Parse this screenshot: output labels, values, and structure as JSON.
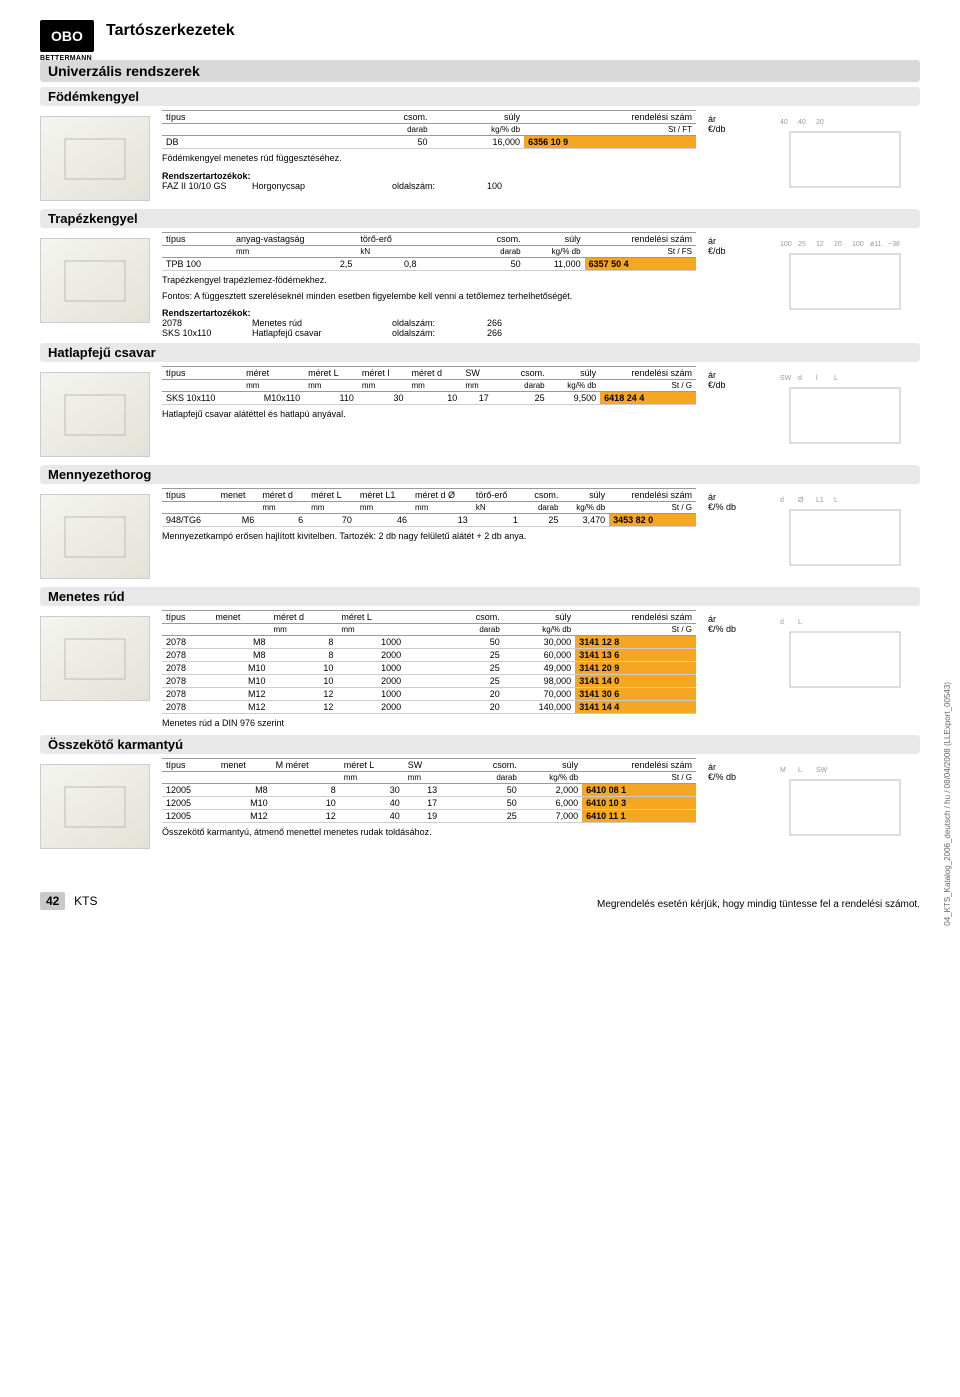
{
  "logo": {
    "text": "OBO",
    "sub": "BETTERMANN"
  },
  "pageTitle": "Tartószerkezetek",
  "mainBar": "Univerzális rendszerek",
  "footer": {
    "pageNum": "42",
    "code": "KTS",
    "note": "Megrendelés esetén kérjük, hogy mindig tüntesse fel a rendelési számot."
  },
  "sideText": "04_KTS_Katalog_2006_deutsch / hu / 08/04/2008 (LLExport_00543)",
  "orderHighlight": "#f5a623",
  "price": {
    "ar": "ár",
    "unitDb": "€/db",
    "unitPctDb": "€/% db"
  },
  "sections": [
    {
      "title": "Födémkengyel",
      "priceUnit": "€/db",
      "headerRow1": [
        "típus",
        "",
        "",
        "",
        "",
        "",
        "",
        "csom.",
        "súly",
        "rendelési szám"
      ],
      "headerRow2": [
        "",
        "",
        "",
        "",
        "",
        "",
        "",
        "darab",
        "kg/% db",
        "St   /   FT"
      ],
      "rows": [
        [
          "DB",
          "",
          "",
          "",
          "",
          "",
          "",
          "50",
          "16,000",
          "6356 10 9"
        ]
      ],
      "notes": [
        "Födémkengyel menetes rúd függesztéséhez."
      ],
      "accessories": {
        "title": "Rendszertartozékok:",
        "items": [
          [
            "FAZ II 10/10 GS",
            "Horgonycsap",
            "oldalszám:",
            "100"
          ]
        ]
      },
      "diagramDims": [
        "40",
        "40",
        "20"
      ]
    },
    {
      "title": "Trapézkengyel",
      "priceUnit": "€/db",
      "headerRow1": [
        "típus",
        "anyag-vastagság",
        "törő-erő",
        "",
        "",
        "",
        "",
        "csom.",
        "súly",
        "rendelési szám"
      ],
      "headerRow2": [
        "",
        "mm",
        "kN",
        "",
        "",
        "",
        "",
        "darab",
        "kg/% db",
        "St   /   FS"
      ],
      "rows": [
        [
          "TPB 100",
          "2,5",
          "0,8",
          "",
          "",
          "",
          "",
          "50",
          "11,000",
          "6357 50 4"
        ]
      ],
      "notes": [
        "Trapézkengyel trapézlemez-födémekhez.",
        "Fontos: A függesztett szereléseknél minden esetben figyelembe kell venni a tetőlemez terhelhetőségét."
      ],
      "accessories": {
        "title": "Rendszertartozékok:",
        "items": [
          [
            "2078",
            "Menetes rúd",
            "oldalszám:",
            "266"
          ],
          [
            "SKS 10x110",
            "Hatlapfejű csavar",
            "oldalszám:",
            "266"
          ]
        ]
      },
      "diagramDims": [
        "100",
        "25",
        "12",
        "20",
        "100",
        "ø11",
        "~38"
      ]
    },
    {
      "title": "Hatlapfejű csavar",
      "priceUnit": "€/db",
      "headerRow1": [
        "típus",
        "méret",
        "méret L",
        "méret l",
        "méret d",
        "SW",
        "",
        "csom.",
        "súly",
        "rendelési szám"
      ],
      "headerRow2": [
        "",
        "mm",
        "mm",
        "mm",
        "mm",
        "mm",
        "",
        "darab",
        "kg/% db",
        "St   /   G"
      ],
      "rows": [
        [
          "SKS 10x110",
          "M10x110",
          "110",
          "30",
          "10",
          "17",
          "",
          "25",
          "9,500",
          "6418 24 4"
        ]
      ],
      "notes": [
        "Hatlapfejű csavar alátéttel és hatlapú anyával."
      ],
      "diagramDims": [
        "SW",
        "d",
        "l",
        "L"
      ]
    },
    {
      "title": "Mennyezethorog",
      "priceUnit": "€/% db",
      "headerRow1": [
        "típus",
        "menet",
        "méret d",
        "méret L",
        "méret L1",
        "méret d Ø",
        "törő-erő",
        "csom.",
        "súly",
        "rendelési szám"
      ],
      "headerRow2": [
        "",
        "",
        "mm",
        "mm",
        "mm",
        "mm",
        "kN",
        "darab",
        "kg/% db",
        "St   /   G"
      ],
      "rows": [
        [
          "948/TG6",
          "M6",
          "6",
          "70",
          "46",
          "13",
          "1",
          "25",
          "3,470",
          "3453 82 0"
        ]
      ],
      "notes": [
        "Mennyezetkampó erősen hajlított kivitelben. Tartozék: 2 db nagy felületű alátét + 2 db anya."
      ],
      "diagramDims": [
        "d",
        "Ø",
        "L1",
        "L"
      ]
    },
    {
      "title": "Menetes rúd",
      "priceUnit": "€/% db",
      "headerRow1": [
        "típus",
        "menet",
        "méret d",
        "méret L",
        "",
        "",
        "",
        "csom.",
        "súly",
        "rendelési szám"
      ],
      "headerRow2": [
        "",
        "",
        "mm",
        "mm",
        "",
        "",
        "",
        "darab",
        "kg/% db",
        "St   /   G"
      ],
      "rows": [
        [
          "2078",
          "M8",
          "8",
          "1000",
          "",
          "",
          "",
          "50",
          "30,000",
          "3141 12 8"
        ],
        [
          "2078",
          "M8",
          "8",
          "2000",
          "",
          "",
          "",
          "25",
          "60,000",
          "3141 13 6"
        ],
        [
          "2078",
          "M10",
          "10",
          "1000",
          "",
          "",
          "",
          "25",
          "49,000",
          "3141 20 9"
        ],
        [
          "2078",
          "M10",
          "10",
          "2000",
          "",
          "",
          "",
          "25",
          "98,000",
          "3141 14 0"
        ],
        [
          "2078",
          "M12",
          "12",
          "1000",
          "",
          "",
          "",
          "20",
          "70,000",
          "3141 30 6"
        ],
        [
          "2078",
          "M12",
          "12",
          "2000",
          "",
          "",
          "",
          "20",
          "140,000",
          "3141 14 4"
        ]
      ],
      "notes": [
        "Menetes rúd a DIN 976 szerint"
      ],
      "diagramDims": [
        "d",
        "L"
      ]
    },
    {
      "title": "Összekötő karmantyú",
      "priceUnit": "€/% db",
      "headerRow1": [
        "típus",
        "menet",
        "M méret",
        "méret L",
        "SW",
        "",
        "",
        "csom.",
        "súly",
        "rendelési szám"
      ],
      "headerRow2": [
        "",
        "",
        "",
        "mm",
        "mm",
        "",
        "",
        "darab",
        "kg/% db",
        "St   /   G"
      ],
      "rows": [
        [
          "12005",
          "M8",
          "8",
          "30",
          "13",
          "",
          "",
          "50",
          "2,000",
          "6410 08 1"
        ],
        [
          "12005",
          "M10",
          "10",
          "40",
          "17",
          "",
          "",
          "50",
          "6,000",
          "6410 10 3"
        ],
        [
          "12005",
          "M12",
          "12",
          "40",
          "19",
          "",
          "",
          "25",
          "7,000",
          "6410 11 1"
        ]
      ],
      "notes": [
        "Összekötő karmantyú, átmenő menettel menetes rudak toldásához."
      ],
      "diagramDims": [
        "M",
        "L",
        "SW"
      ]
    }
  ]
}
